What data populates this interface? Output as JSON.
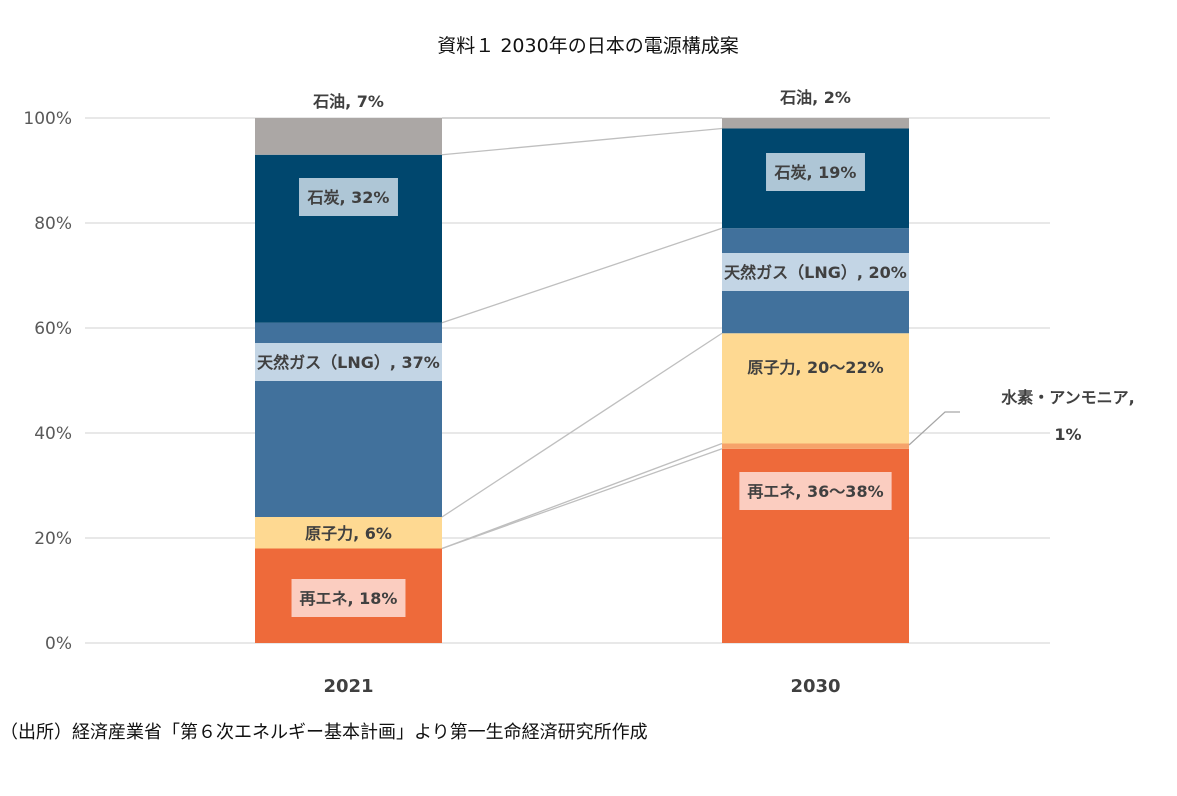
{
  "chart_data": {
    "type": "bar",
    "stacked": true,
    "title": "資料１ 2030年の日本の電源構成案",
    "categories": [
      "2021",
      "2030"
    ],
    "ylim": [
      0,
      100
    ],
    "yticks": [
      "0%",
      "20%",
      "40%",
      "60%",
      "80%",
      "100%"
    ],
    "grid": true,
    "bars": [
      {
        "category": "2021",
        "segments": [
          {
            "name": "再エネ",
            "value": 18,
            "label": "再エネ, 18%",
            "color": "#EE6A3A",
            "label_bg": "#FBCDC0"
          },
          {
            "name": "原子力",
            "value": 6,
            "label": "原子力, 6%",
            "color": "#FED992",
            "label_bg": ""
          },
          {
            "name": "天然ガス（LNG）",
            "value": 37,
            "label": "天然ガス（LNG）, 37%",
            "color": "#41719C",
            "label_bg": "#C3D5E5"
          },
          {
            "name": "石炭",
            "value": 32,
            "label": "石炭, 32%",
            "color": "#00476E",
            "label_bg": "#AEC6D6"
          },
          {
            "name": "石油",
            "value": 7,
            "label": "石油, 7%",
            "color": "#ABA7A5",
            "label_bg": ""
          }
        ]
      },
      {
        "category": "2030",
        "segments": [
          {
            "name": "再エネ",
            "value": 37,
            "label": "再エネ, 36〜38%",
            "color": "#EE6A3A",
            "label_bg": "#FBCDC0"
          },
          {
            "name": "水素・アンモニア",
            "value": 1,
            "label": "水素・アンモニア,",
            "label2": "1%",
            "color": "#F6A36A",
            "label_bg": ""
          },
          {
            "name": "原子力",
            "value": 21,
            "label": "原子力, 20〜22%",
            "color": "#FED992",
            "label_bg": ""
          },
          {
            "name": "天然ガス（LNG）",
            "value": 20,
            "label": "天然ガス（LNG）, 20%",
            "color": "#41719C",
            "label_bg": "#C3D5E5"
          },
          {
            "name": "石炭",
            "value": 19,
            "label": "石炭, 19%",
            "color": "#00476E",
            "label_bg": "#AEC6D6"
          },
          {
            "name": "石油",
            "value": 2,
            "label": "石油, 2%",
            "color": "#ABA7A5",
            "label_bg": ""
          }
        ]
      }
    ]
  },
  "source_note": "（出所）経済産業省「第６次エネルギー基本計画」より第一生命経済研究所作成"
}
